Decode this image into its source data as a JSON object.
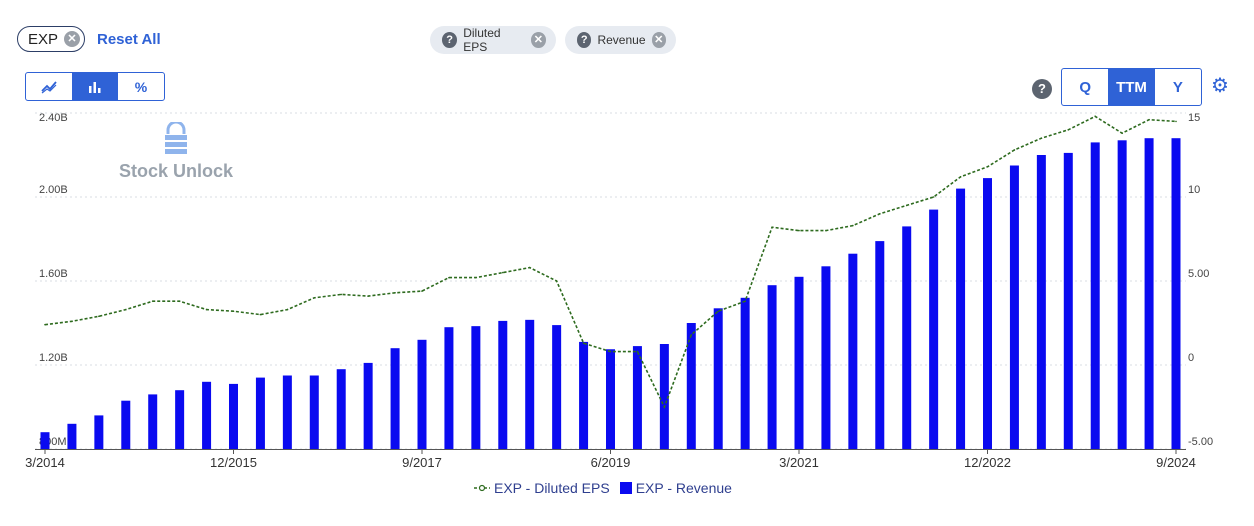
{
  "toolbar": {
    "ticker": "EXP",
    "reset_label": "Reset All",
    "metric_chips": [
      "Diluted EPS",
      "Revenue"
    ],
    "period_buttons": [
      "Q",
      "TTM",
      "Y"
    ],
    "active_period": "TTM",
    "active_chart_type": "bar",
    "percent_label": "%"
  },
  "watermark": "Stock Unlock",
  "colors": {
    "accent": "#2f62d6",
    "revenue_bar": "#0a0af0",
    "eps_line": "#2e6b1f"
  },
  "chart_data": {
    "type": "bar",
    "x_tick_labels": [
      "3/2014",
      "12/2015",
      "9/2017",
      "6/2019",
      "3/2021",
      "12/2022",
      "9/2024"
    ],
    "left_axis": {
      "ticks": [
        "800M",
        "1.20B",
        "1.60B",
        "2.00B",
        "2.40B"
      ],
      "ylim": [
        0.8,
        2.4
      ],
      "unit": "B"
    },
    "right_axis": {
      "ticks": [
        "-5.00",
        "0",
        "5.00",
        "10",
        "15"
      ],
      "ylim": [
        -5,
        15
      ]
    },
    "categories": [
      "3/2014",
      "6/2014",
      "9/2014",
      "12/2014",
      "3/2015",
      "6/2015",
      "9/2015",
      "12/2015",
      "3/2016",
      "6/2016",
      "9/2016",
      "12/2016",
      "3/2017",
      "6/2017",
      "9/2017",
      "12/2017",
      "3/2018",
      "6/2018",
      "9/2018",
      "12/2018",
      "3/2019",
      "6/2019",
      "9/2019",
      "12/2019",
      "3/2020",
      "6/2020",
      "9/2020",
      "12/2020",
      "3/2021",
      "6/2021",
      "9/2021",
      "12/2021",
      "3/2022",
      "6/2022",
      "9/2022",
      "12/2022",
      "3/2023",
      "6/2023",
      "9/2023",
      "12/2023",
      "3/2024",
      "6/2024",
      "9/2024"
    ],
    "series": [
      {
        "name": "EXP - Revenue",
        "kind": "bar",
        "axis": "left",
        "values": [
          0.88,
          0.92,
          0.96,
          1.03,
          1.06,
          1.08,
          1.12,
          1.11,
          1.14,
          1.15,
          1.15,
          1.18,
          1.21,
          1.28,
          1.32,
          1.38,
          1.385,
          1.41,
          1.415,
          1.39,
          1.31,
          1.275,
          1.29,
          1.3,
          1.4,
          1.47,
          1.52,
          1.58,
          1.62,
          1.67,
          1.73,
          1.79,
          1.86,
          1.94,
          2.04,
          2.09,
          2.15,
          2.2,
          2.21,
          2.26,
          2.27,
          2.28,
          2.28
        ]
      },
      {
        "name": "EXP - Diluted EPS",
        "kind": "line",
        "axis": "right",
        "values": [
          2.4,
          2.6,
          2.9,
          3.3,
          3.8,
          3.8,
          3.3,
          3.2,
          3.0,
          3.3,
          4.0,
          4.2,
          4.1,
          4.3,
          4.4,
          5.2,
          5.2,
          5.5,
          5.8,
          5.0,
          1.3,
          0.8,
          0.8,
          -2.5,
          1.8,
          3.2,
          3.8,
          8.2,
          8.0,
          8.0,
          8.3,
          9.0,
          9.5,
          10.0,
          11.2,
          11.8,
          12.8,
          13.5,
          14.0,
          14.8,
          13.8,
          14.6,
          14.5
        ]
      }
    ],
    "legend": {
      "placement": "bottom-center"
    },
    "grid": true
  }
}
